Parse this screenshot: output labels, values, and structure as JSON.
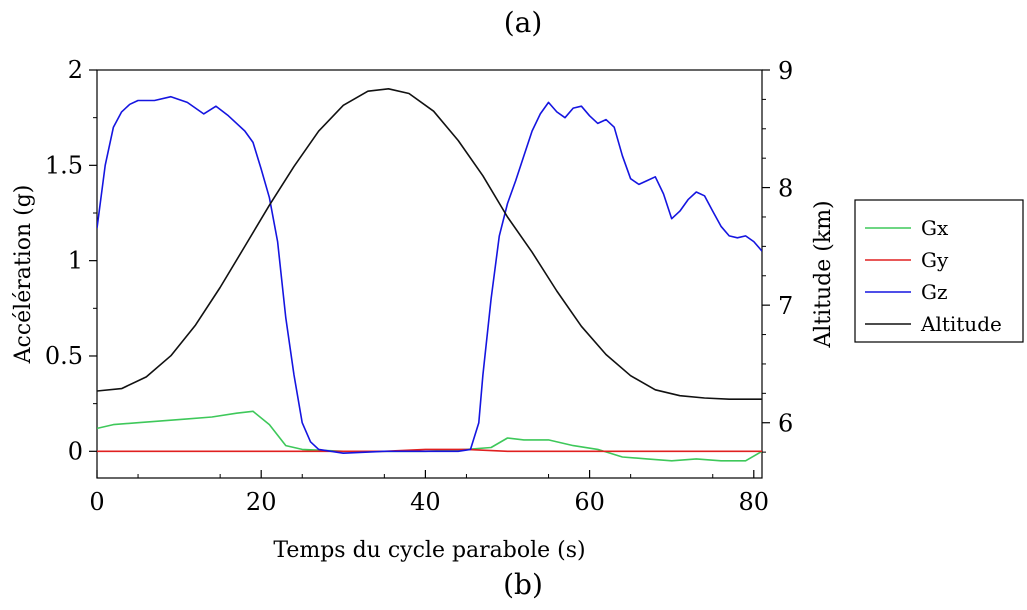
{
  "captions": {
    "top": "(a)",
    "bottom": "(b)"
  },
  "chart_data": {
    "type": "line",
    "xlabel": "Temps du cycle parabole (s)",
    "ylabel_left": "Accélération (g)",
    "ylabel_right": "Altitude (km)",
    "xlim": [
      0,
      81
    ],
    "ylim_left": [
      -0.14,
      2.0
    ],
    "ylim_right": [
      5.53,
      9.0
    ],
    "x_ticks": [
      0,
      20,
      40,
      60,
      80
    ],
    "y_left_ticks": [
      0,
      0.5,
      1,
      1.5,
      2
    ],
    "y_left_tick_labels": [
      "0",
      "0.5",
      "1",
      "1.5",
      "2"
    ],
    "y_right_ticks": [
      6,
      7,
      8,
      9
    ],
    "grid": false,
    "legend_position": "right",
    "series": [
      {
        "name": "Gx",
        "axis": "left",
        "color": "#3ec85a",
        "x": [
          0,
          2,
          5,
          8,
          11,
          14,
          17,
          19,
          21,
          23,
          25,
          30,
          35,
          40,
          45,
          48,
          50,
          52,
          55,
          58,
          61,
          64,
          67,
          70,
          73,
          76,
          79,
          81
        ],
        "y": [
          0.12,
          0.14,
          0.15,
          0.16,
          0.17,
          0.18,
          0.2,
          0.21,
          0.14,
          0.03,
          0.01,
          0.0,
          0.0,
          0.0,
          0.01,
          0.02,
          0.07,
          0.06,
          0.06,
          0.03,
          0.01,
          -0.03,
          -0.04,
          -0.05,
          -0.04,
          -0.05,
          -0.05,
          0.0
        ]
      },
      {
        "name": "Gy",
        "axis": "left",
        "color": "#e02020",
        "x": [
          0,
          5,
          10,
          15,
          20,
          25,
          30,
          35,
          40,
          45,
          50,
          55,
          60,
          65,
          70,
          75,
          81
        ],
        "y": [
          0.0,
          0.0,
          0.0,
          0.0,
          0.0,
          0.0,
          0.0,
          0.0,
          0.01,
          0.01,
          0.0,
          0.0,
          0.0,
          0.0,
          0.0,
          0.0,
          0.0
        ]
      },
      {
        "name": "Gz",
        "axis": "left",
        "color": "#1515e0",
        "x": [
          0,
          1,
          2,
          3,
          4,
          5,
          7,
          9,
          11,
          13,
          14.5,
          16,
          18,
          19,
          20,
          21,
          22,
          23,
          24,
          25,
          26,
          27,
          30,
          35,
          40,
          44,
          45.5,
          46.5,
          47,
          48,
          49,
          50,
          51,
          52,
          53,
          54,
          55,
          56,
          57,
          58,
          59,
          60,
          61,
          62,
          63,
          64,
          65,
          66,
          67,
          68,
          69,
          70,
          71,
          72,
          73,
          74,
          75,
          76,
          77,
          78,
          79,
          80,
          81
        ],
        "y": [
          1.17,
          1.5,
          1.7,
          1.78,
          1.82,
          1.84,
          1.84,
          1.86,
          1.83,
          1.77,
          1.81,
          1.76,
          1.68,
          1.62,
          1.48,
          1.33,
          1.1,
          0.7,
          0.4,
          0.15,
          0.05,
          0.01,
          -0.01,
          0.0,
          0.0,
          0.0,
          0.01,
          0.15,
          0.4,
          0.8,
          1.13,
          1.3,
          1.42,
          1.55,
          1.68,
          1.77,
          1.83,
          1.78,
          1.75,
          1.8,
          1.81,
          1.76,
          1.72,
          1.74,
          1.7,
          1.55,
          1.43,
          1.4,
          1.42,
          1.44,
          1.35,
          1.22,
          1.26,
          1.32,
          1.36,
          1.34,
          1.26,
          1.18,
          1.13,
          1.12,
          1.13,
          1.1,
          1.05
        ]
      },
      {
        "name": "Altitude",
        "axis": "right",
        "color": "#111111",
        "x": [
          0,
          3,
          6,
          9,
          12,
          15,
          18,
          21,
          24,
          27,
          30,
          33,
          35.5,
          38,
          41,
          44,
          47,
          50,
          53,
          56,
          59,
          62,
          65,
          68,
          71,
          74,
          77,
          81
        ],
        "y": [
          6.27,
          6.29,
          6.39,
          6.57,
          6.83,
          7.15,
          7.5,
          7.85,
          8.18,
          8.48,
          8.7,
          8.82,
          8.84,
          8.8,
          8.65,
          8.4,
          8.1,
          7.75,
          7.45,
          7.12,
          6.82,
          6.58,
          6.4,
          6.28,
          6.23,
          6.21,
          6.2,
          6.2
        ]
      }
    ]
  }
}
